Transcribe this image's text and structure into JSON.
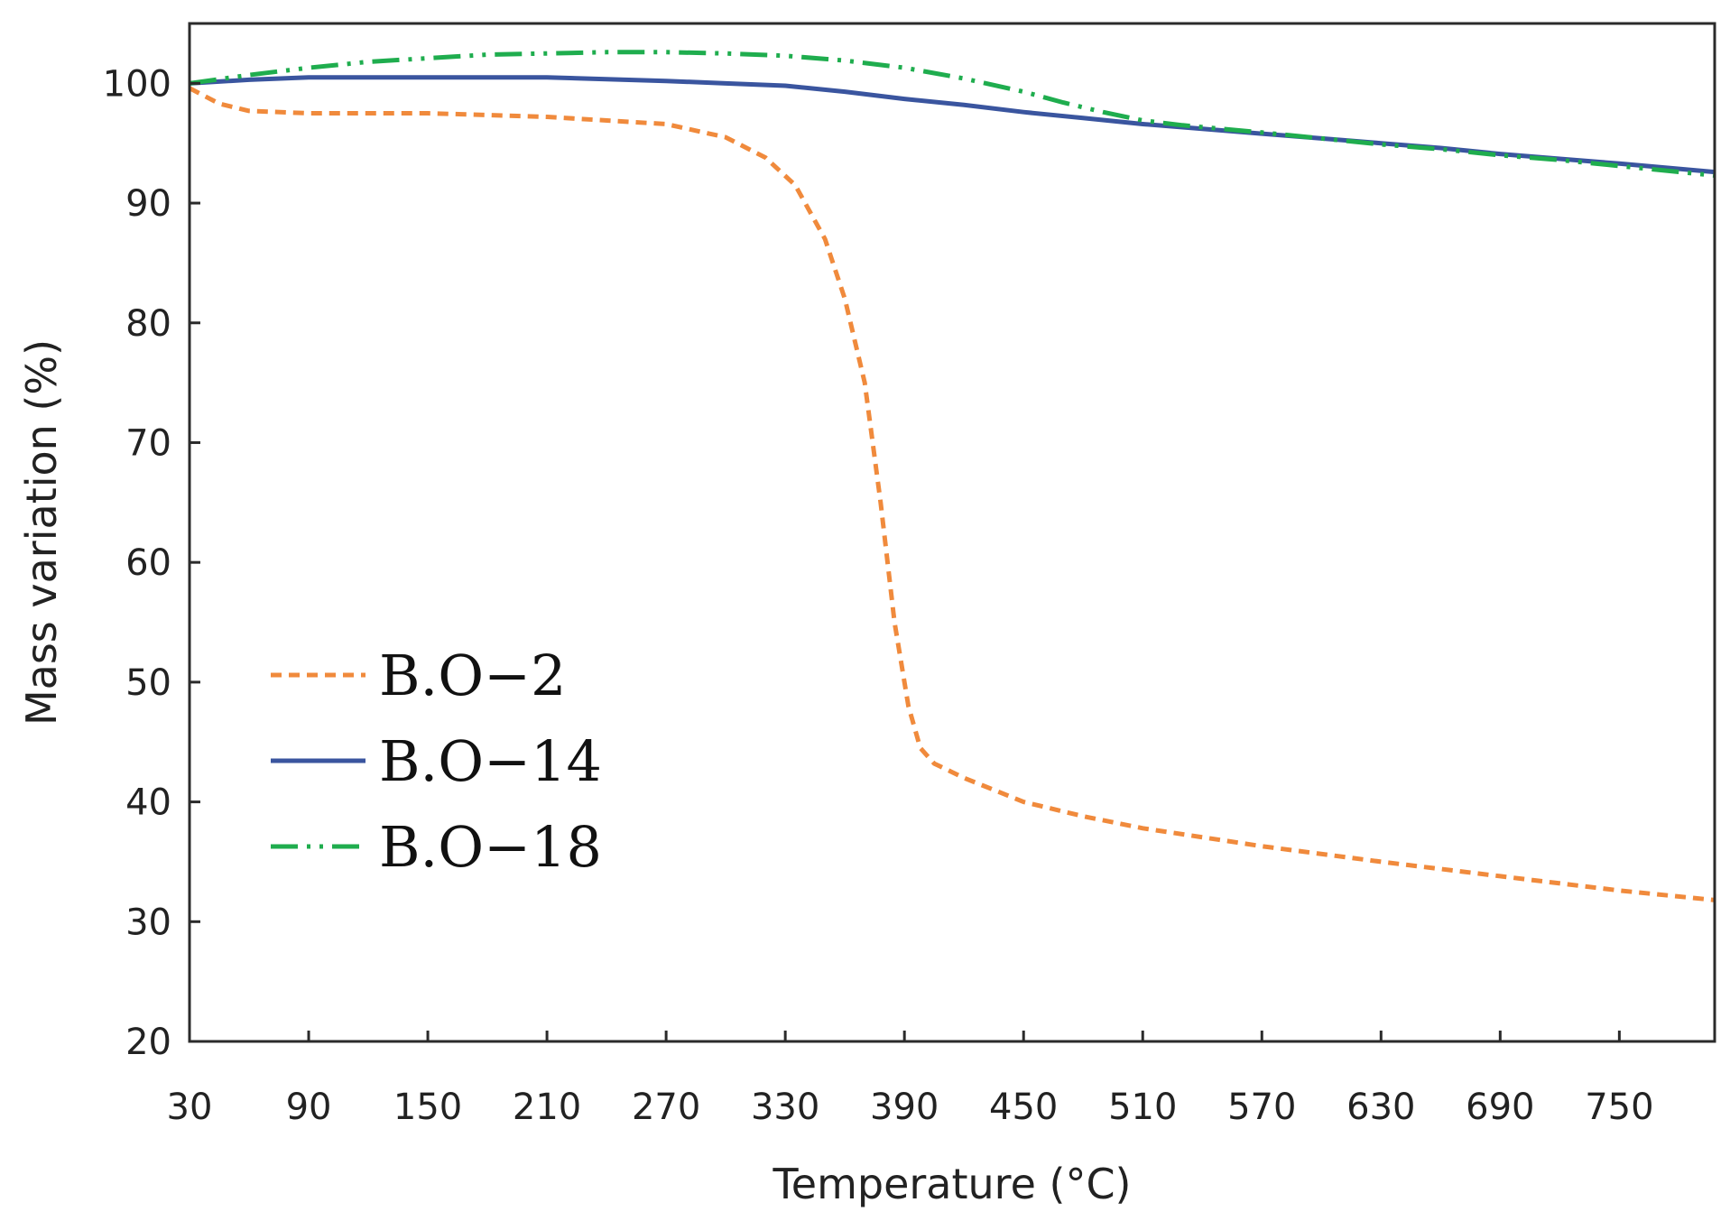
{
  "chart_data": {
    "type": "line",
    "title": "",
    "xlabel": "Temperature (°C)",
    "ylabel": "Mass variation (%)",
    "xlim": [
      30,
      798
    ],
    "ylim": [
      20,
      105
    ],
    "grid": false,
    "legend_position": "middle-left",
    "x_ticks": [
      30,
      90,
      150,
      210,
      270,
      330,
      390,
      450,
      510,
      570,
      630,
      690,
      750
    ],
    "x_tick_labels": [
      "30",
      "90",
      "150",
      "210",
      "270",
      "330",
      "390",
      "450",
      "510",
      "570",
      "630",
      "690",
      "750"
    ],
    "y_ticks": [
      20,
      30,
      40,
      50,
      60,
      70,
      80,
      90,
      100
    ],
    "y_tick_labels": [
      "20",
      "30",
      "40",
      "50",
      "60",
      "70",
      "80",
      "90",
      "100"
    ],
    "series": [
      {
        "name": "B.O−2",
        "color": "#f08a3c",
        "style": "dashed",
        "points": [
          [
            30,
            99.6
          ],
          [
            45,
            98.3
          ],
          [
            60,
            97.7
          ],
          [
            90,
            97.5
          ],
          [
            150,
            97.5
          ],
          [
            210,
            97.2
          ],
          [
            270,
            96.6
          ],
          [
            300,
            95.5
          ],
          [
            320,
            93.8
          ],
          [
            335,
            91.5
          ],
          [
            350,
            87
          ],
          [
            360,
            82
          ],
          [
            370,
            75
          ],
          [
            378,
            65
          ],
          [
            385,
            55
          ],
          [
            392,
            48
          ],
          [
            398,
            44.5
          ],
          [
            405,
            43.2
          ],
          [
            420,
            42
          ],
          [
            450,
            40
          ],
          [
            480,
            38.8
          ],
          [
            510,
            37.8
          ],
          [
            570,
            36.3
          ],
          [
            630,
            35
          ],
          [
            690,
            33.8
          ],
          [
            750,
            32.6
          ],
          [
            798,
            31.8
          ]
        ]
      },
      {
        "name": "B.O−14",
        "color": "#3a559f",
        "style": "solid",
        "points": [
          [
            30,
            100
          ],
          [
            60,
            100.3
          ],
          [
            90,
            100.5
          ],
          [
            150,
            100.5
          ],
          [
            210,
            100.5
          ],
          [
            270,
            100.2
          ],
          [
            300,
            100
          ],
          [
            330,
            99.8
          ],
          [
            360,
            99.3
          ],
          [
            390,
            98.7
          ],
          [
            420,
            98.2
          ],
          [
            450,
            97.6
          ],
          [
            480,
            97.1
          ],
          [
            510,
            96.6
          ],
          [
            540,
            96.2
          ],
          [
            570,
            95.8
          ],
          [
            600,
            95.4
          ],
          [
            630,
            95
          ],
          [
            660,
            94.6
          ],
          [
            690,
            94.1
          ],
          [
            720,
            93.7
          ],
          [
            750,
            93.3
          ],
          [
            798,
            92.6
          ]
        ]
      },
      {
        "name": "B.O−18",
        "color": "#1fad4e",
        "style": "dash-dot-dot",
        "points": [
          [
            30,
            100
          ],
          [
            60,
            100.7
          ],
          [
            90,
            101.3
          ],
          [
            120,
            101.8
          ],
          [
            150,
            102.1
          ],
          [
            180,
            102.4
          ],
          [
            210,
            102.5
          ],
          [
            240,
            102.6
          ],
          [
            270,
            102.6
          ],
          [
            300,
            102.5
          ],
          [
            330,
            102.3
          ],
          [
            360,
            101.9
          ],
          [
            390,
            101.3
          ],
          [
            420,
            100.4
          ],
          [
            450,
            99.3
          ],
          [
            470,
            98.4
          ],
          [
            490,
            97.6
          ],
          [
            510,
            96.9
          ],
          [
            530,
            96.5
          ],
          [
            570,
            95.9
          ],
          [
            600,
            95.4
          ],
          [
            630,
            94.9
          ],
          [
            660,
            94.5
          ],
          [
            690,
            94
          ],
          [
            720,
            93.6
          ],
          [
            750,
            93.1
          ],
          [
            798,
            92.3
          ]
        ]
      }
    ]
  }
}
